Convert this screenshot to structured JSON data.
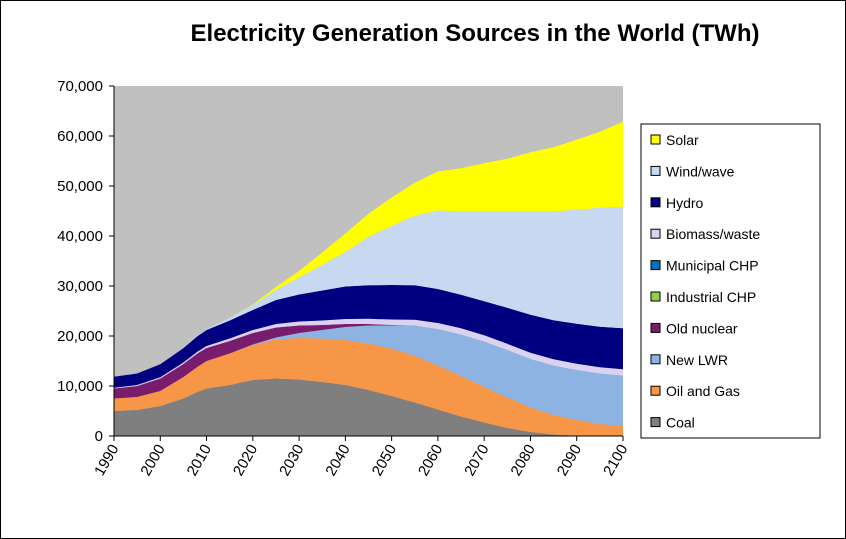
{
  "chart_data": {
    "type": "area",
    "stacked": true,
    "title": "Electricity Generation Sources in the World (TWh)",
    "xlabel": "",
    "ylabel": "",
    "x": [
      1990,
      1995,
      2000,
      2005,
      2008,
      2010,
      2015,
      2020,
      2025,
      2030,
      2035,
      2040,
      2045,
      2050,
      2055,
      2060,
      2065,
      2070,
      2075,
      2080,
      2085,
      2090,
      2095,
      2100
    ],
    "xlim": [
      1990,
      2100
    ],
    "ylim": [
      0,
      70000
    ],
    "x_ticks": [
      "1990",
      "2000",
      "2010",
      "2020",
      "2030",
      "2040",
      "2050",
      "2060",
      "2070",
      "2080",
      "2090",
      "2100"
    ],
    "y_ticks": [
      "0",
      "10,000",
      "20,000",
      "30,000",
      "40,000",
      "50,000",
      "60,000",
      "70,000"
    ],
    "legend_position": "right",
    "series": [
      {
        "name": "Coal",
        "color": "#7f7f7f",
        "values": [
          5000,
          5200,
          6000,
          7500,
          8800,
          9500,
          10200,
          11200,
          11500,
          11300,
          10800,
          10200,
          9200,
          8000,
          6700,
          5300,
          3900,
          2700,
          1600,
          800,
          300,
          100,
          0,
          0
        ]
      },
      {
        "name": "Oil and Gas",
        "color": "#f79646",
        "values": [
          2500,
          2600,
          3000,
          4300,
          5000,
          5500,
          6300,
          7000,
          7800,
          8300,
          8700,
          9000,
          9300,
          9500,
          9300,
          8800,
          8100,
          7100,
          6100,
          4900,
          3900,
          3100,
          2400,
          2000
        ]
      },
      {
        "name": "New LWR",
        "color": "#8db3e2",
        "values": [
          0,
          0,
          0,
          0,
          0,
          0,
          0,
          100,
          400,
          1000,
          1700,
          2600,
          3600,
          4600,
          6100,
          7300,
          8300,
          9100,
          9500,
          9700,
          9900,
          10000,
          10100,
          10100
        ]
      },
      {
        "name": "Old nuclear",
        "color": "#7a1c6e",
        "values": [
          2000,
          2200,
          2500,
          2600,
          2700,
          2600,
          2500,
          2300,
          2000,
          1500,
          1000,
          600,
          300,
          100,
          0,
          0,
          0,
          0,
          0,
          0,
          0,
          0,
          0,
          0
        ]
      },
      {
        "name": "Industrial CHP",
        "color": "#92d050",
        "values": [
          0,
          0,
          0,
          0,
          0,
          0,
          0,
          0,
          0,
          0,
          0,
          0,
          0,
          0,
          0,
          0,
          0,
          0,
          0,
          0,
          0,
          0,
          0,
          0
        ]
      },
      {
        "name": "Municipal CHP",
        "color": "#0070c0",
        "values": [
          0,
          0,
          0,
          0,
          0,
          0,
          0,
          0,
          0,
          0,
          0,
          0,
          0,
          0,
          0,
          0,
          0,
          0,
          0,
          0,
          0,
          0,
          0,
          0
        ]
      },
      {
        "name": "Biomass/waste",
        "color": "#d9d2f0",
        "values": [
          150,
          200,
          250,
          300,
          350,
          400,
          500,
          600,
          700,
          800,
          900,
          1000,
          1050,
          1100,
          1150,
          1200,
          1250,
          1250,
          1250,
          1250,
          1250,
          1250,
          1250,
          1250
        ]
      },
      {
        "name": "Hydro",
        "color": "#000080",
        "values": [
          2200,
          2300,
          2600,
          2900,
          3100,
          3200,
          3600,
          4000,
          4800,
          5400,
          6000,
          6500,
          6700,
          6900,
          6900,
          6800,
          6700,
          6800,
          7200,
          7600,
          7800,
          8000,
          8100,
          8200
        ]
      },
      {
        "name": "Wind/wave",
        "color": "#c6d9f1",
        "values": [
          0,
          0,
          0,
          100,
          150,
          200,
          500,
          1000,
          2000,
          3400,
          5100,
          6900,
          9700,
          11800,
          13900,
          15700,
          16700,
          18000,
          19300,
          20700,
          21800,
          22800,
          23800,
          24300
        ]
      },
      {
        "name": "Solar",
        "color": "#ffff00",
        "values": [
          0,
          0,
          0,
          0,
          0,
          0,
          0,
          100,
          600,
          1300,
          2500,
          3700,
          4600,
          5700,
          6600,
          7800,
          8600,
          9600,
          10500,
          11800,
          12800,
          14000,
          15200,
          17000
        ]
      }
    ],
    "legend_order": [
      "Solar",
      "Wind/wave",
      "Hydro",
      "Biomass/waste",
      "Municipal CHP",
      "Industrial CHP",
      "Old nuclear",
      "New LWR",
      "Oil and Gas",
      "Coal"
    ],
    "plot_background": "#c0c0c0"
  }
}
